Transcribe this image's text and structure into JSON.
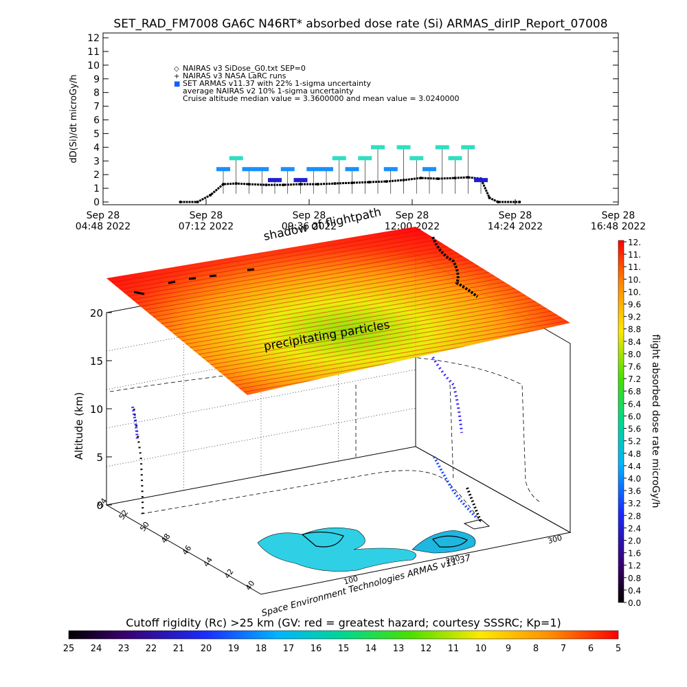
{
  "title": "SET_RAD_FM7008   GA6C N46RT* absorbed dose rate (Si) ARMAS_dirIP_Report_07008",
  "chart_data": [
    {
      "type": "scatter",
      "ylabel": "dD(Si)/dt microGy/h",
      "ylim": [
        0,
        12
      ],
      "y_ticks": [
        "0",
        "1",
        "2",
        "3",
        "4",
        "5",
        "6",
        "7",
        "8",
        "9",
        "10",
        "11",
        "12"
      ],
      "x_ticks": [
        {
          "date": "Sep 28",
          "time": "04:48 2022"
        },
        {
          "date": "Sep 28",
          "time": "07:12 2022"
        },
        {
          "date": "Sep 28",
          "time": "09:36 2022"
        },
        {
          "date": "Sep 28",
          "time": "12:00 2022"
        },
        {
          "date": "Sep 28",
          "time": "14:24 2022"
        },
        {
          "date": "Sep 28",
          "time": "16:48 2022"
        }
      ],
      "xlim_hours": [
        4.8,
        16.8
      ],
      "legend": [
        {
          "symbol": "◇",
          "text": "NAIRAS v3 SiDose_G0.txt SEP=0"
        },
        {
          "symbol": "+",
          "text": "NAIRAS v3 NASA LaRC runs"
        },
        {
          "symbol": "■",
          "text": "SET ARMAS v11.37 with 22% 1-sigma uncertainty"
        },
        {
          "symbol": "",
          "text": "average NAIRAS v2 10% 1-sigma uncertainty"
        },
        {
          "symbol": "",
          "text": "Cruise altitude median value = 3.3600000 and mean value = 3.0240000"
        }
      ],
      "series": [
        {
          "name": "NAIRAS v3 SiDose_G0.txt SEP=0",
          "x_hours": [
            6.6,
            7.0,
            7.3,
            7.6,
            7.9,
            8.2,
            8.6,
            9.0,
            9.4,
            9.8,
            10.2,
            10.6,
            11.0,
            11.4,
            11.8,
            12.2,
            12.6,
            13.0,
            13.3,
            13.6,
            13.8,
            14.0,
            14.5
          ],
          "values": [
            0,
            0,
            0.5,
            1.3,
            1.35,
            1.3,
            1.25,
            1.25,
            1.3,
            1.3,
            1.35,
            1.4,
            1.45,
            1.5,
            1.6,
            1.75,
            1.7,
            1.75,
            1.8,
            1.7,
            0.3,
            0,
            0
          ]
        },
        {
          "name": "SET ARMAS v11.37 with 22% 1-sigma uncertainty",
          "x_hours": [
            7.6,
            7.9,
            8.2,
            8.5,
            8.8,
            9.1,
            9.4,
            9.7,
            10.0,
            10.3,
            10.6,
            10.9,
            11.2,
            11.5,
            11.8,
            12.1,
            12.4,
            12.7,
            13.0,
            13.3,
            13.6
          ],
          "values": [
            2.4,
            3.2,
            2.4,
            2.4,
            1.6,
            2.4,
            1.6,
            2.4,
            2.4,
            3.2,
            2.4,
            3.2,
            4.0,
            2.4,
            4.0,
            3.2,
            2.4,
            4.0,
            3.2,
            4.0,
            1.6
          ]
        }
      ]
    },
    {
      "type": "heatmap",
      "annotations": [
        "precipitating particles",
        "shadow of flightpath"
      ],
      "zlabel": "Altitude (km)",
      "z_ticks": [
        "0",
        "5",
        "10",
        "15",
        "20"
      ],
      "lat_ticks": [
        "54",
        "52",
        "50",
        "48",
        "46",
        "44",
        "42",
        "40"
      ],
      "lon_ticks": [
        "100",
        "200",
        "300"
      ],
      "credit": "Space Environment Technologies ARMAS v11.37",
      "colorbar_label": "flight absorbed dose rate microGy/h",
      "colorbar_ticks": [
        "0.0",
        "0.4",
        "0.8",
        "1.2",
        "1.6",
        "2.0",
        "2.4",
        "2.8",
        "3.2",
        "3.6",
        "4.0",
        "4.4",
        "4.8",
        "5.2",
        "5.6",
        "6.0",
        "6.4",
        "6.8",
        "7.2",
        "7.6",
        "8.0",
        "8.4",
        "8.8",
        "9.2",
        "9.6",
        "10.",
        "10.",
        "11.",
        "11.",
        "12."
      ],
      "rigidity_title": "Cutoff rigidity (Rc) >25 km (GV: red = greatest hazard; courtesy SSSRC; Kp=1)",
      "rigidity_ticks": [
        "25",
        "24",
        "23",
        "22",
        "21",
        "20",
        "19",
        "18",
        "17",
        "16",
        "15",
        "14",
        "13",
        "12",
        "11",
        "10",
        "9",
        "8",
        "7",
        "6",
        "5"
      ]
    }
  ]
}
